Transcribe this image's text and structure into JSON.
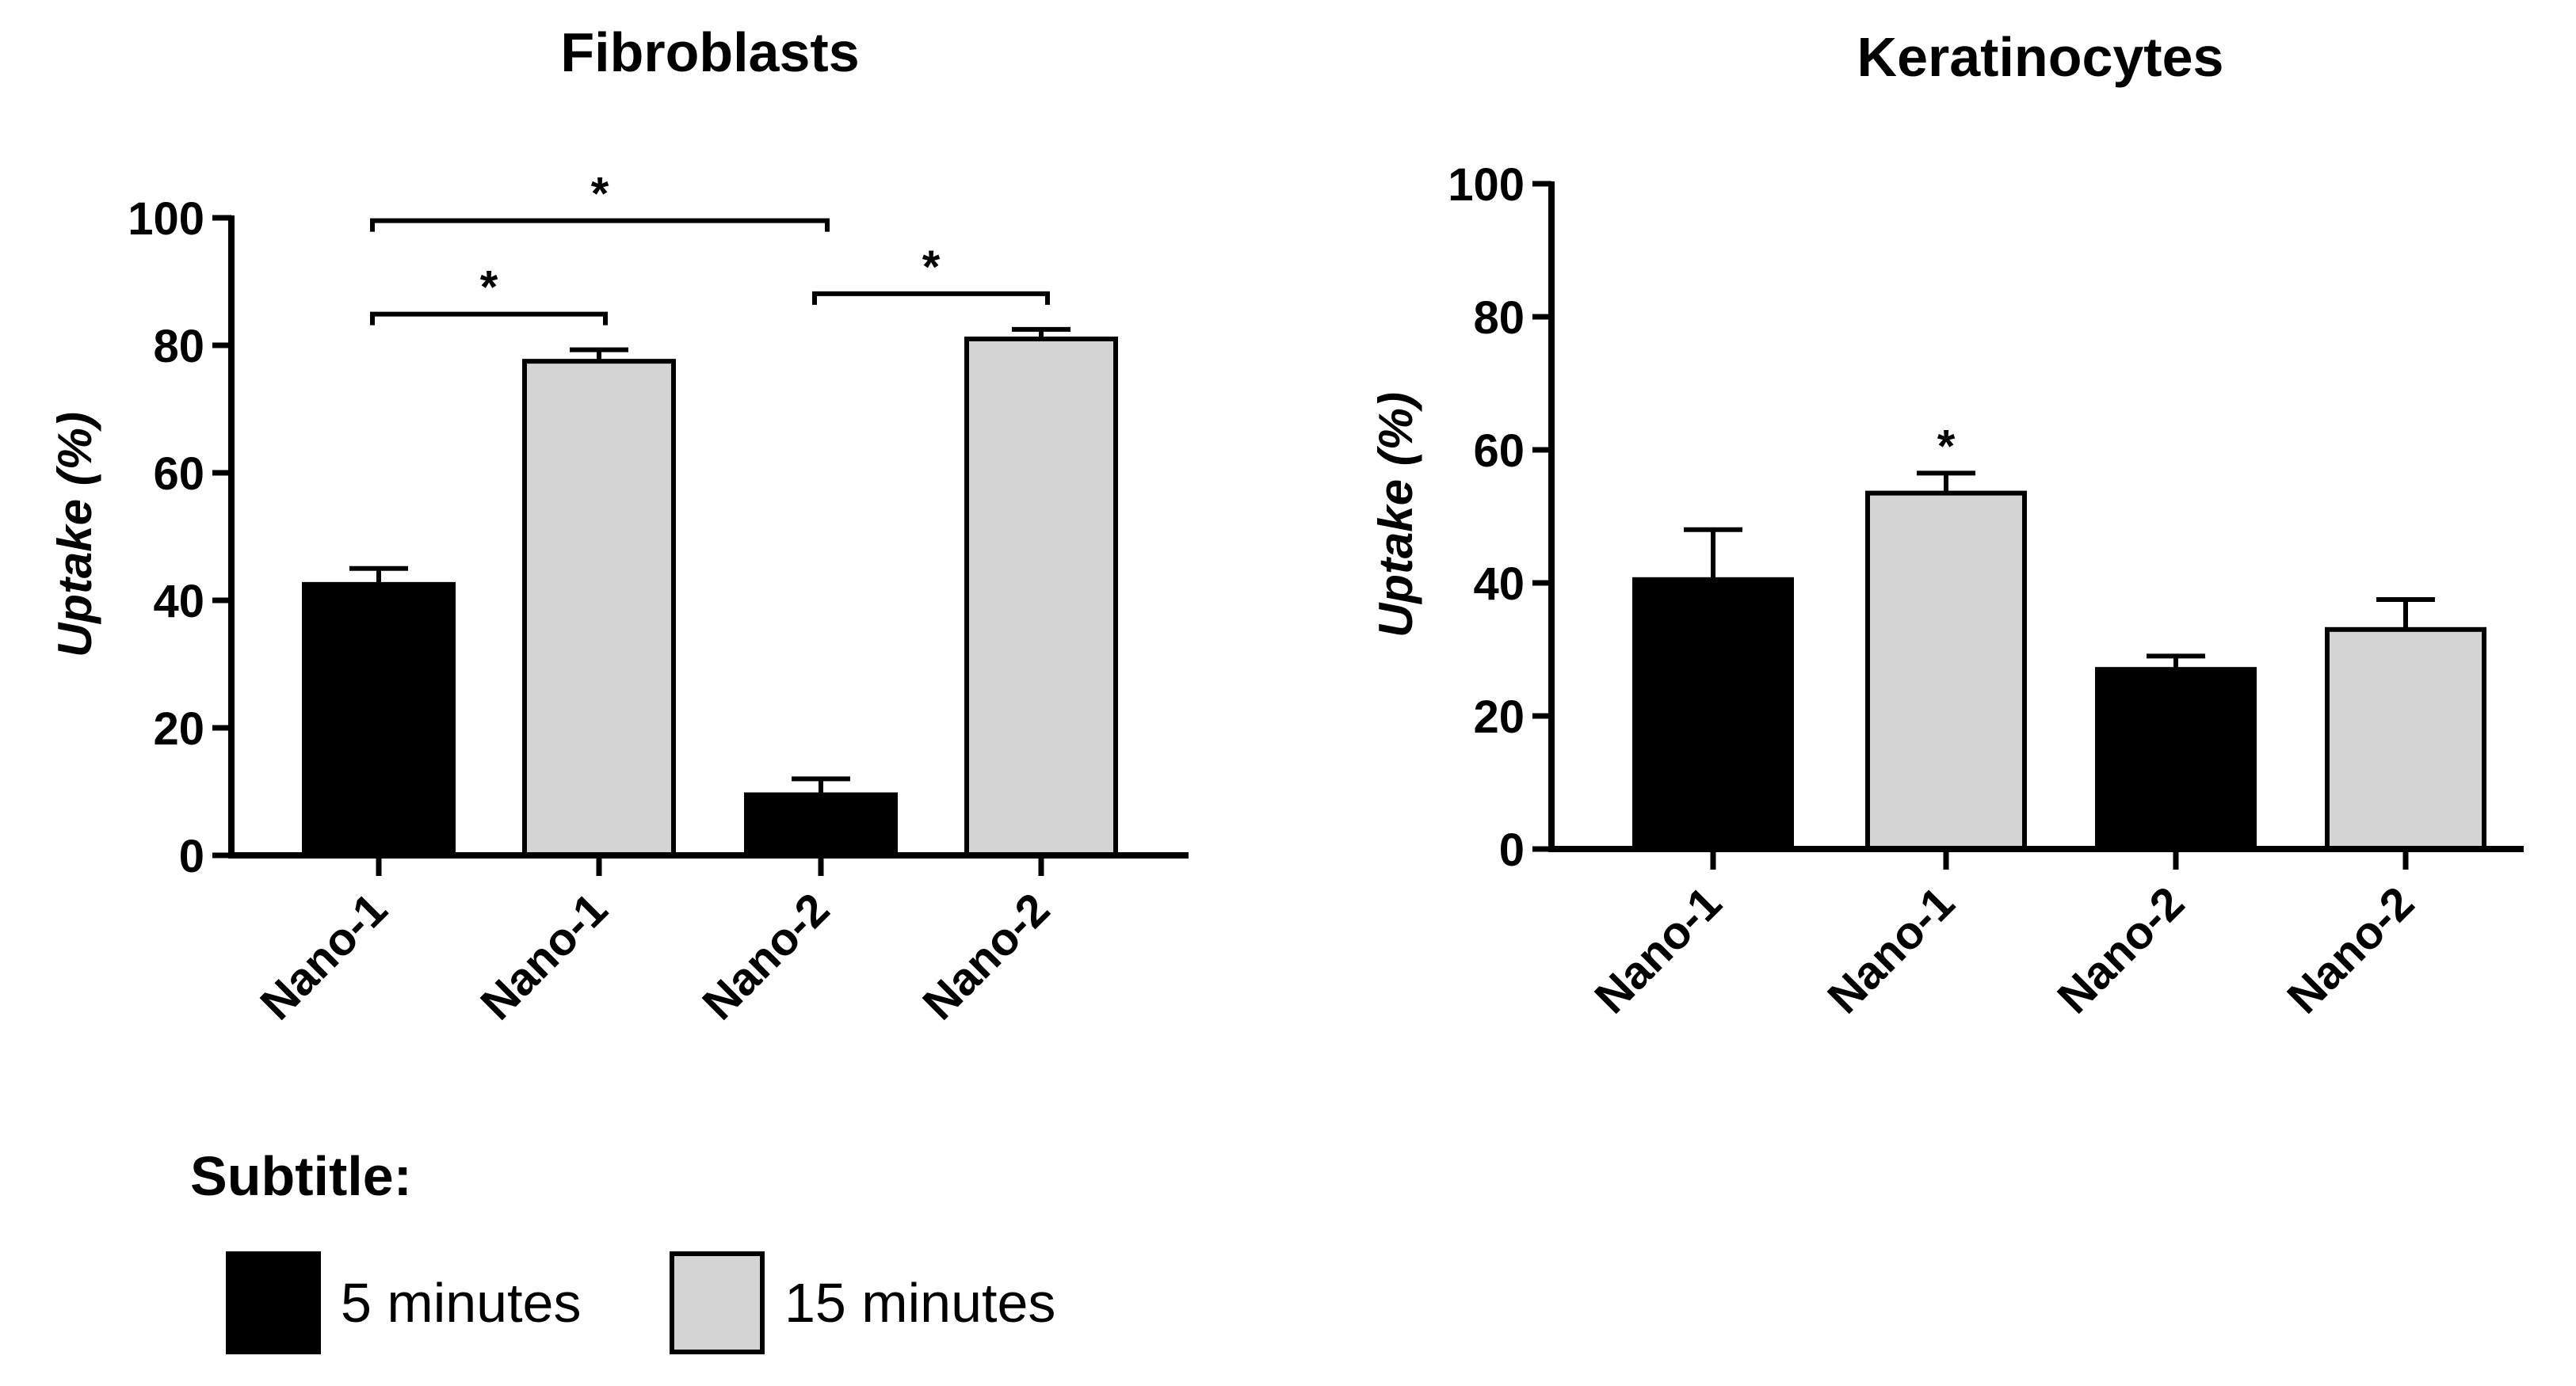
{
  "legend": {
    "title": "Subtitle:",
    "items": [
      {
        "label": "5 minutes",
        "color": "#000000"
      },
      {
        "label": "15 minutes",
        "color": "#d4d4d4"
      }
    ]
  },
  "chart_data": [
    {
      "type": "bar",
      "title": "Fibroblasts",
      "xlabel": "",
      "ylabel": "Uptake (%)",
      "ylim": [
        0,
        100
      ],
      "yticks": [
        0,
        20,
        40,
        60,
        80,
        100
      ],
      "categories": [
        "Nano-1",
        "Nano-1",
        "Nano-2",
        "Nano-2"
      ],
      "values": [
        42.5,
        77.5,
        9.5,
        81
      ],
      "errors": [
        2.5,
        1.8,
        2.5,
        1.5
      ],
      "groups": [
        "5 minutes",
        "15 minutes",
        "5 minutes",
        "15 minutes"
      ],
      "significance": [
        {
          "from": 0,
          "to": 1,
          "label": "*"
        },
        {
          "from": 0,
          "to": 2,
          "label": "*"
        },
        {
          "from": 2,
          "to": 3,
          "label": "*"
        }
      ]
    },
    {
      "type": "bar",
      "title": "Keratinocytes",
      "xlabel": "",
      "ylabel": "Uptake (%)",
      "ylim": [
        0,
        100
      ],
      "yticks": [
        0,
        20,
        40,
        60,
        80,
        100
      ],
      "categories": [
        "Nano-1",
        "Nano-1",
        "Nano-2",
        "Nano-2"
      ],
      "values": [
        40.5,
        53.5,
        27,
        33
      ],
      "errors": [
        7.5,
        3,
        2,
        4.5
      ],
      "groups": [
        "5 minutes",
        "15 minutes",
        "5 minutes",
        "15 minutes"
      ],
      "significance": [
        {
          "bar": 1,
          "label": "*"
        }
      ]
    }
  ]
}
